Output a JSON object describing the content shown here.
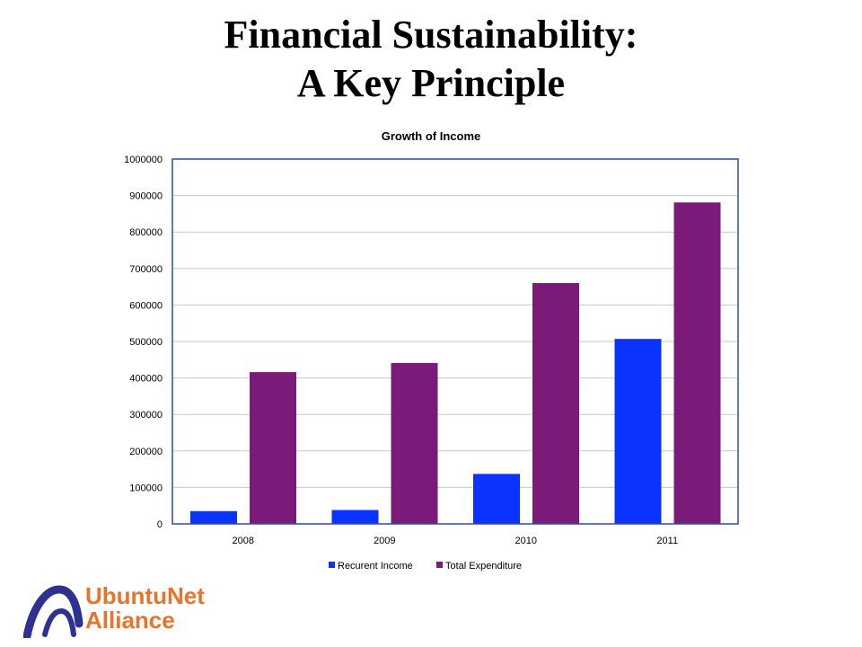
{
  "slide": {
    "title_line1": "Financial Sustainability:",
    "title_line2": "A Key Principle"
  },
  "chart_data": {
    "type": "bar",
    "title": "Growth of Income",
    "xlabel": "",
    "ylabel": "",
    "ylim": [
      0,
      1000000
    ],
    "yticks": [
      "0",
      "100000",
      "200000",
      "300000",
      "400000",
      "500000",
      "600000",
      "700000",
      "800000",
      "900000",
      "1000000"
    ],
    "categories": [
      "2008",
      "2009",
      "2010",
      "2011"
    ],
    "series": [
      {
        "name": "Recurent Income",
        "color": "#0B33FF",
        "values": [
          35000,
          38000,
          137000,
          507000
        ]
      },
      {
        "name": "Total Expenditure",
        "color": "#7B1A78",
        "values": [
          416000,
          441000,
          660000,
          881000
        ]
      }
    ],
    "grid": true,
    "legend": "bottom",
    "frame_color": "#2F4A9A"
  },
  "logo": {
    "line1": "UbuntuNet",
    "line2": "Alliance",
    "color": "#E8742B",
    "mark_color": "#2E3192"
  }
}
